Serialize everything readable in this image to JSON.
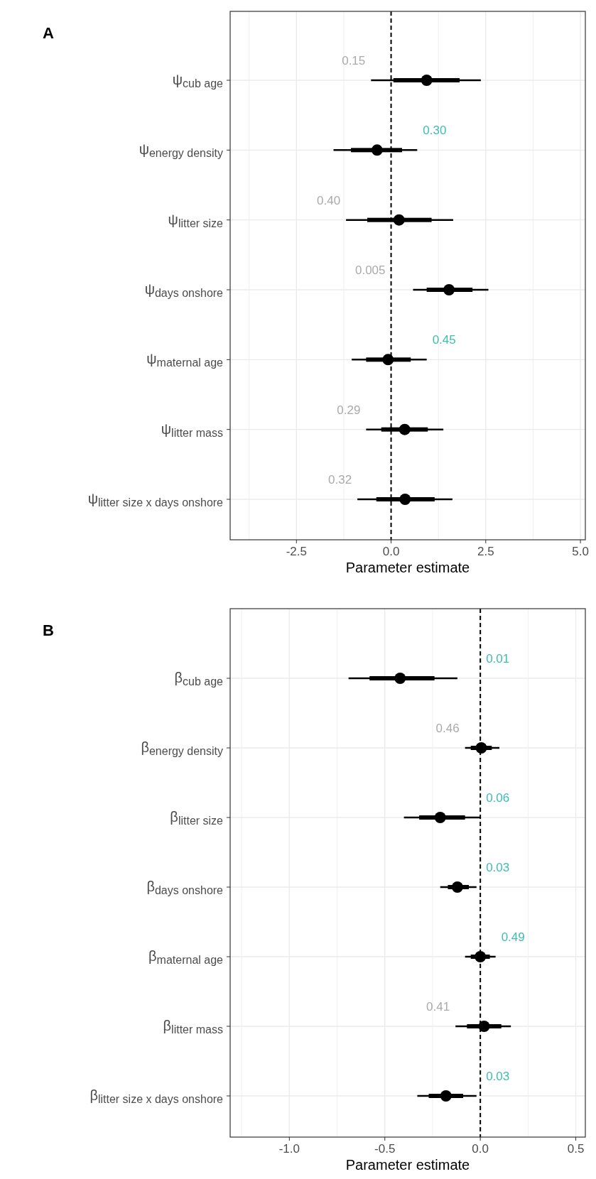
{
  "chart_data": [
    {
      "type": "box",
      "orientation": "horizontal",
      "title": "A",
      "xlabel": "Parameter estimate",
      "grid": true,
      "categories": [
        "ψ$_{cub age}$",
        "ψ$_{energy density}$",
        "ψ$_{litter size}$",
        "ψ$_{days onshore}$",
        "ψ$_{maternal age}$",
        "ψ$_{litter mass}$",
        "ψ$_{litter size x days onshore}$"
      ],
      "boxes": [
        {
          "low": -0.53,
          "q1": 0.06,
          "median": 0.94,
          "q3": 1.81,
          "high": 2.37
        },
        {
          "low": -1.52,
          "q1": -1.06,
          "median": -0.37,
          "q3": 0.29,
          "high": 0.69
        },
        {
          "low": -1.19,
          "q1": -0.63,
          "median": 0.21,
          "q3": 1.07,
          "high": 1.64
        },
        {
          "low": 0.58,
          "q1": 0.94,
          "median": 1.53,
          "q3": 2.15,
          "high": 2.57
        },
        {
          "low": -1.04,
          "q1": -0.66,
          "median": -0.08,
          "q3": 0.52,
          "high": 0.94
        },
        {
          "low": -0.66,
          "q1": -0.26,
          "median": 0.36,
          "q3": 0.97,
          "high": 1.38
        },
        {
          "low": -0.89,
          "q1": -0.39,
          "median": 0.37,
          "q3": 1.15,
          "high": 1.62
        }
      ],
      "xlim": [
        -4.25,
        5.13
      ],
      "xticks": [
        {
          "value": -3.75,
          "label": null
        },
        "-2.5",
        {
          "value": -1.25,
          "label": null
        },
        {
          "value": 0,
          "label": "0.0"
        },
        {
          "value": 1.25,
          "label": null
        },
        {
          "value": 2.5,
          "label": "2.5"
        },
        {
          "value": 3.75,
          "label": null
        },
        {
          "value": 5,
          "label": "5.0"
        }
      ],
      "ref_lines": [
        {
          "axis": "x",
          "value": 0,
          "line_style": "dashed"
        }
      ],
      "annotations": [
        "0.15",
        "0.30",
        "0.40",
        "0.005",
        "0.45",
        "0.29",
        "0.32"
      ]
    },
    {
      "type": "box",
      "orientation": "horizontal",
      "title": "B",
      "xlabel": "Parameter estimate",
      "grid": true,
      "categories": [
        "β$_{cub age}$",
        "β$_{energy density}$",
        "β$_{litter size}$",
        "β$_{days onshore}$",
        "β$_{maternal age}$",
        "β$_{litter mass}$",
        "β$_{litter size x days onshore}$"
      ],
      "boxes": [
        {
          "low": -0.69,
          "q1": -0.58,
          "median": -0.42,
          "q3": -0.24,
          "high": -0.12
        },
        {
          "low": -0.08,
          "q1": -0.05,
          "median": 0.005,
          "q3": 0.06,
          "high": 0.1
        },
        {
          "low": -0.4,
          "q1": -0.32,
          "median": -0.21,
          "q3": -0.08,
          "high": 0.0
        },
        {
          "low": -0.21,
          "q1": -0.17,
          "median": -0.12,
          "q3": -0.06,
          "high": -0.02
        },
        {
          "low": -0.08,
          "q1": -0.05,
          "median": 0.0,
          "q3": 0.05,
          "high": 0.08
        },
        {
          "low": -0.13,
          "q1": -0.07,
          "median": 0.02,
          "q3": 0.11,
          "high": 0.16
        },
        {
          "low": -0.33,
          "q1": -0.27,
          "median": -0.18,
          "q3": -0.09,
          "high": -0.02
        }
      ],
      "xlim": [
        -1.31,
        0.55
      ],
      "xticks": [
        {
          "value": -1.25,
          "label": null
        },
        {
          "value": -1,
          "label": "-1.0"
        },
        {
          "value": -0.75,
          "label": null
        },
        {
          "value": -0.5,
          "label": "-0.5"
        },
        {
          "value": -0.25,
          "label": null
        },
        {
          "value": 0,
          "label": "0.0"
        },
        {
          "value": 0.25,
          "label": null
        },
        {
          "value": 0.5,
          "label": "0.5"
        }
      ],
      "ref_lines": [
        {
          "axis": "x",
          "value": 0,
          "line_style": "dashed"
        }
      ],
      "annotations": [
        "0.01",
        "0.46",
        "0.06",
        "0.03",
        "0.49",
        "0.41",
        "0.03"
      ]
    }
  ]
}
